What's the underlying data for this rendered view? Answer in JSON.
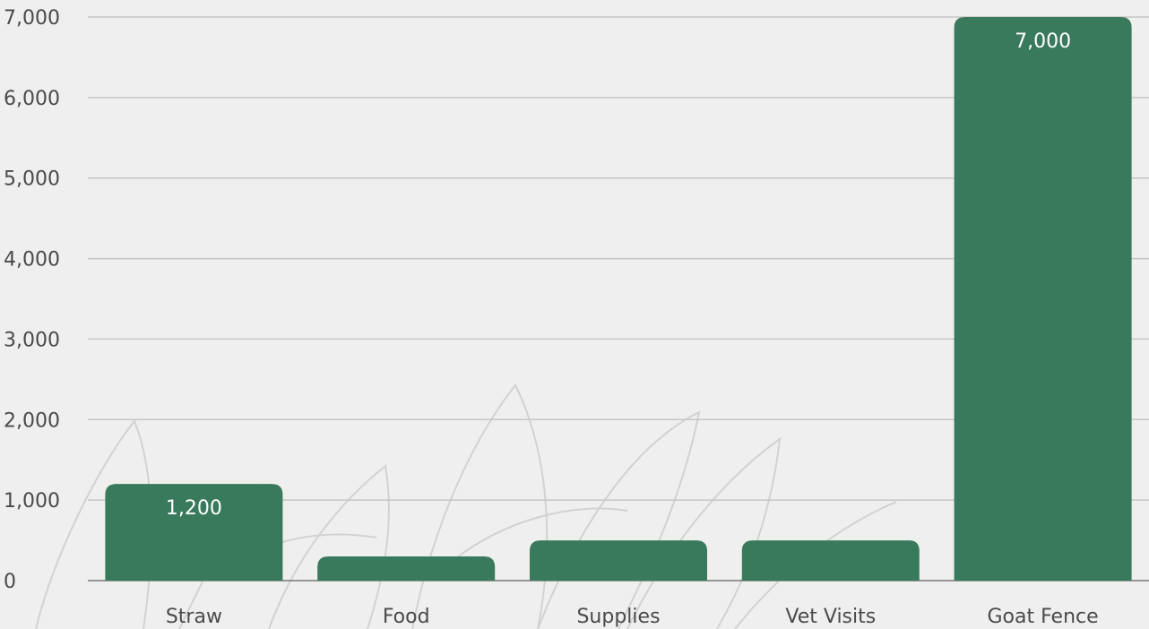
{
  "colors": {
    "background": "#efefef",
    "bar": "#3a7a5c",
    "grid": "#c6c6c6",
    "text": "#4a4a4a",
    "data_label": "#ffffff"
  },
  "chart_data": {
    "type": "bar",
    "categories": [
      "Straw",
      "Food",
      "Supplies",
      "Vet Visits",
      "Goat Fence"
    ],
    "values": [
      1200,
      300,
      500,
      500,
      7000
    ],
    "data_labels": [
      "1,200",
      "",
      "",
      "",
      "7,000"
    ],
    "y_ticks": [
      0,
      1000,
      2000,
      3000,
      4000,
      5000,
      6000,
      7000
    ],
    "y_tick_labels": [
      "0",
      "1,000",
      "2,000",
      "3,000",
      "4,000",
      "5,000",
      "6,000",
      "7,000"
    ],
    "ylim": [
      0,
      7000
    ],
    "title": "",
    "xlabel": "",
    "ylabel": "",
    "grid": true,
    "legend": "none"
  }
}
